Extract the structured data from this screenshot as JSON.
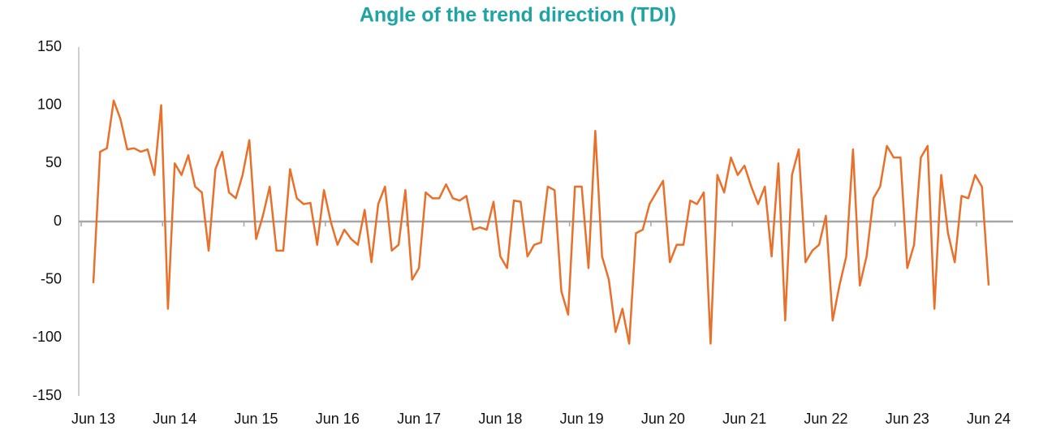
{
  "chart_data": {
    "type": "line",
    "title": "Angle of the trend direction (TDI)",
    "categories": [
      "Jun 13",
      null,
      null,
      null,
      null,
      null,
      null,
      null,
      null,
      null,
      null,
      null,
      "Jun 14",
      null,
      null,
      null,
      null,
      null,
      null,
      null,
      null,
      null,
      null,
      null,
      "Jun 15",
      null,
      null,
      null,
      null,
      null,
      null,
      null,
      null,
      null,
      null,
      null,
      "Jun 16",
      null,
      null,
      null,
      null,
      null,
      null,
      null,
      null,
      null,
      null,
      null,
      "Jun 17",
      null,
      null,
      null,
      null,
      null,
      null,
      null,
      null,
      null,
      null,
      null,
      "Jun 18",
      null,
      null,
      null,
      null,
      null,
      null,
      null,
      null,
      null,
      null,
      null,
      "Jun 19",
      null,
      null,
      null,
      null,
      null,
      null,
      null,
      null,
      null,
      null,
      null,
      "Jun 20",
      null,
      null,
      null,
      null,
      null,
      null,
      null,
      null,
      null,
      null,
      null,
      "Jun 21",
      null,
      null,
      null,
      null,
      null,
      null,
      null,
      null,
      null,
      null,
      null,
      "Jun 22",
      null,
      null,
      null,
      null,
      null,
      null,
      null,
      null,
      null,
      null,
      null,
      "Jun 23",
      null,
      null,
      null,
      null,
      null,
      null,
      null,
      null,
      null,
      null,
      null,
      "Jun 24"
    ],
    "series": [
      {
        "name": "TDI",
        "color": "#e8702a",
        "values": [
          -53,
          60,
          63,
          104,
          88,
          62,
          63,
          60,
          62,
          40,
          100,
          -75,
          50,
          40,
          57,
          30,
          25,
          -25,
          45,
          60,
          25,
          20,
          40,
          70,
          -15,
          5,
          30,
          -25,
          -25,
          45,
          20,
          15,
          16,
          -20,
          27,
          0,
          -20,
          -7,
          -15,
          -20,
          10,
          -35,
          15,
          30,
          -25,
          -20,
          27,
          -50,
          -40,
          25,
          20,
          20,
          32,
          20,
          18,
          22,
          -7,
          -5,
          -7,
          17,
          -30,
          -40,
          18,
          17,
          -30,
          -20,
          -18,
          30,
          27,
          -60,
          -80,
          30,
          30,
          -40,
          78,
          -30,
          -50,
          -95,
          -75,
          -105,
          -10,
          -7,
          15,
          25,
          35,
          -35,
          -20,
          -20,
          18,
          15,
          25,
          -105,
          40,
          25,
          55,
          40,
          48,
          30,
          15,
          30,
          -30,
          50,
          -85,
          40,
          62,
          -35,
          -25,
          -20,
          5,
          -85,
          -55,
          -30,
          62,
          -55,
          -30,
          20,
          30,
          65,
          55,
          55,
          -40,
          -20,
          55,
          65,
          -75,
          40,
          -10,
          -35,
          22,
          20,
          40,
          30,
          -55
        ]
      }
    ],
    "ylim": [
      -150,
      150
    ],
    "yticks": [
      -150,
      -100,
      -50,
      0,
      50,
      100,
      150
    ]
  }
}
